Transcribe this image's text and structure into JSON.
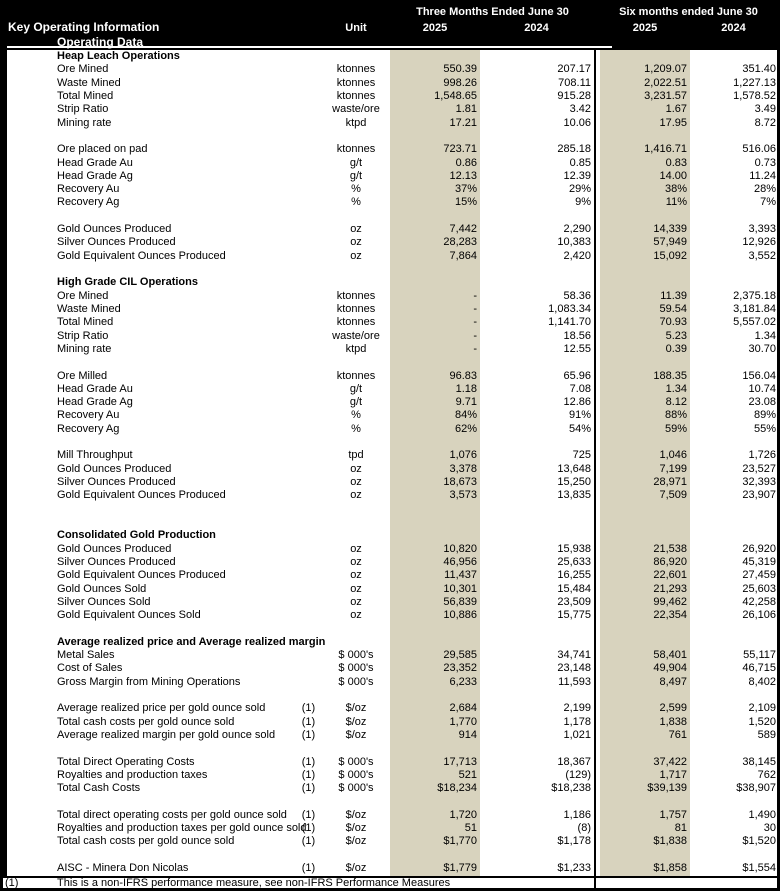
{
  "header": {
    "title": "Key Operating Information",
    "subtitle": "Operating Data",
    "unit_label": "Unit",
    "period1": "Three Months Ended June 30",
    "period2": "Six months ended June 30",
    "years": [
      "2025",
      "2024",
      "2025",
      "2024"
    ]
  },
  "colors": {
    "highlight": "#d8d3be",
    "header_bg": "#000000",
    "header_fg": "#ffffff"
  },
  "rows": [
    {
      "type": "section",
      "label": "Heap Leach Operations"
    },
    {
      "type": "data",
      "label": "Ore Mined",
      "note": "",
      "unit": "ktonnes",
      "values": [
        "550.39",
        "207.17",
        "1,209.07",
        "351.40"
      ]
    },
    {
      "type": "data",
      "label": "Waste Mined",
      "note": "",
      "unit": "ktonnes",
      "values": [
        "998.26",
        "708.11",
        "2,022.51",
        "1,227.13"
      ]
    },
    {
      "type": "data",
      "label": "Total Mined",
      "note": "",
      "unit": "ktonnes",
      "values": [
        "1,548.65",
        "915.28",
        "3,231.57",
        "1,578.52"
      ]
    },
    {
      "type": "data",
      "label": "Strip Ratio",
      "note": "",
      "unit": "waste/ore",
      "values": [
        "1.81",
        "3.42",
        "1.67",
        "3.49"
      ]
    },
    {
      "type": "data",
      "label": "Mining rate",
      "note": "",
      "unit": "ktpd",
      "values": [
        "17.21",
        "10.06",
        "17.95",
        "8.72"
      ]
    },
    {
      "type": "blank"
    },
    {
      "type": "data",
      "label": "Ore placed on pad",
      "note": "",
      "unit": "ktonnes",
      "values": [
        "723.71",
        "285.18",
        "1,416.71",
        "516.06"
      ]
    },
    {
      "type": "data",
      "label": "Head Grade Au",
      "note": "",
      "unit": "g/t",
      "values": [
        "0.86",
        "0.85",
        "0.83",
        "0.73"
      ]
    },
    {
      "type": "data",
      "label": "Head Grade Ag",
      "note": "",
      "unit": "g/t",
      "values": [
        "12.13",
        "12.39",
        "14.00",
        "11.24"
      ]
    },
    {
      "type": "data",
      "label": "Recovery Au",
      "note": "",
      "unit": "%",
      "values": [
        "37%",
        "29%",
        "38%",
        "28%"
      ]
    },
    {
      "type": "data",
      "label": "Recovery Ag",
      "note": "",
      "unit": "%",
      "values": [
        "15%",
        "9%",
        "11%",
        "7%"
      ]
    },
    {
      "type": "blank"
    },
    {
      "type": "data",
      "label": "Gold Ounces Produced",
      "note": "",
      "unit": "oz",
      "values": [
        "7,442",
        "2,290",
        "14,339",
        "3,393"
      ]
    },
    {
      "type": "data",
      "label": "Silver Ounces Produced",
      "note": "",
      "unit": "oz",
      "values": [
        "28,283",
        "10,383",
        "57,949",
        "12,926"
      ]
    },
    {
      "type": "data",
      "label": "Gold Equivalent Ounces Produced",
      "note": "",
      "unit": "oz",
      "values": [
        "7,864",
        "2,420",
        "15,092",
        "3,552"
      ]
    },
    {
      "type": "blank"
    },
    {
      "type": "section",
      "label": "High Grade CIL Operations"
    },
    {
      "type": "data",
      "label": "Ore Mined",
      "note": "",
      "unit": "ktonnes",
      "values": [
        "-",
        "58.36",
        "11.39",
        "2,375.18"
      ]
    },
    {
      "type": "data",
      "label": "Waste Mined",
      "note": "",
      "unit": "ktonnes",
      "values": [
        "-",
        "1,083.34",
        "59.54",
        "3,181.84"
      ]
    },
    {
      "type": "data",
      "label": "Total Mined",
      "note": "",
      "unit": "ktonnes",
      "values": [
        "-",
        "1,141.70",
        "70.93",
        "5,557.02"
      ]
    },
    {
      "type": "data",
      "label": "Strip Ratio",
      "note": "",
      "unit": "waste/ore",
      "values": [
        "-",
        "18.56",
        "5.23",
        "1.34"
      ]
    },
    {
      "type": "data",
      "label": "Mining rate",
      "note": "",
      "unit": "ktpd",
      "values": [
        "-",
        "12.55",
        "0.39",
        "30.70"
      ]
    },
    {
      "type": "blank"
    },
    {
      "type": "data",
      "label": "Ore Milled",
      "note": "",
      "unit": "ktonnes",
      "values": [
        "96.83",
        "65.96",
        "188.35",
        "156.04"
      ]
    },
    {
      "type": "data",
      "label": "Head Grade Au",
      "note": "",
      "unit": "g/t",
      "values": [
        "1.18",
        "7.08",
        "1.34",
        "10.74"
      ]
    },
    {
      "type": "data",
      "label": "Head Grade Ag",
      "note": "",
      "unit": "g/t",
      "values": [
        "9.71",
        "12.86",
        "8.12",
        "23.08"
      ]
    },
    {
      "type": "data",
      "label": "Recovery Au",
      "note": "",
      "unit": "%",
      "values": [
        "84%",
        "91%",
        "88%",
        "89%"
      ]
    },
    {
      "type": "data",
      "label": "Recovery Ag",
      "note": "",
      "unit": "%",
      "values": [
        "62%",
        "54%",
        "59%",
        "55%"
      ]
    },
    {
      "type": "blank"
    },
    {
      "type": "data",
      "label": "Mill Throughput",
      "note": "",
      "unit": "tpd",
      "values": [
        "1,076",
        "725",
        "1,046",
        "1,726"
      ]
    },
    {
      "type": "data",
      "label": "Gold Ounces Produced",
      "note": "",
      "unit": "oz",
      "values": [
        "3,378",
        "13,648",
        "7,199",
        "23,527"
      ]
    },
    {
      "type": "data",
      "label": "Silver Ounces Produced",
      "note": "",
      "unit": "oz",
      "values": [
        "18,673",
        "15,250",
        "28,971",
        "32,393"
      ]
    },
    {
      "type": "data",
      "label": "Gold Equivalent Ounces Produced",
      "note": "",
      "unit": "oz",
      "values": [
        "3,573",
        "13,835",
        "7,509",
        "23,907"
      ]
    },
    {
      "type": "blank"
    },
    {
      "type": "blank"
    },
    {
      "type": "section",
      "label": "Consolidated Gold Production"
    },
    {
      "type": "data",
      "label": "Gold Ounces Produced",
      "note": "",
      "unit": "oz",
      "values": [
        "10,820",
        "15,938",
        "21,538",
        "26,920"
      ]
    },
    {
      "type": "data",
      "label": "Silver Ounces Produced",
      "note": "",
      "unit": "oz",
      "values": [
        "46,956",
        "25,633",
        "86,920",
        "45,319"
      ]
    },
    {
      "type": "data",
      "label": "Gold Equivalent Ounces Produced",
      "note": "",
      "unit": "oz",
      "values": [
        "11,437",
        "16,255",
        "22,601",
        "27,459"
      ]
    },
    {
      "type": "data",
      "label": "Gold Ounces Sold",
      "note": "",
      "unit": "oz",
      "values": [
        "10,301",
        "15,484",
        "21,293",
        "25,603"
      ]
    },
    {
      "type": "data",
      "label": "Silver Ounces Sold",
      "note": "",
      "unit": "oz",
      "values": [
        "56,839",
        "23,509",
        "99,462",
        "42,258"
      ]
    },
    {
      "type": "data",
      "label": "Gold Equivalent Ounces Sold",
      "note": "",
      "unit": "oz",
      "values": [
        "10,886",
        "15,775",
        "22,354",
        "26,106"
      ]
    },
    {
      "type": "blank"
    },
    {
      "type": "section",
      "label": "Average realized price and Average realized margin"
    },
    {
      "type": "data",
      "label": "Metal Sales",
      "note": "",
      "unit": "$ 000's",
      "values": [
        "29,585",
        "34,741",
        "58,401",
        "55,117"
      ]
    },
    {
      "type": "data",
      "label": "Cost of Sales",
      "note": "",
      "unit": "$ 000's",
      "values": [
        "23,352",
        "23,148",
        "49,904",
        "46,715"
      ]
    },
    {
      "type": "data",
      "label": "Gross Margin from Mining Operations",
      "note": "",
      "unit": "$ 000's",
      "values": [
        "6,233",
        "11,593",
        "8,497",
        "8,402"
      ]
    },
    {
      "type": "blank"
    },
    {
      "type": "data",
      "label": "Average realized price per gold ounce sold",
      "note": "(1)",
      "unit": "$/oz",
      "values": [
        "2,684",
        "2,199",
        "2,599",
        "2,109"
      ]
    },
    {
      "type": "data",
      "label": "Total cash costs per gold ounce sold",
      "note": "(1)",
      "unit": "$/oz",
      "values": [
        "1,770",
        "1,178",
        "1,838",
        "1,520"
      ]
    },
    {
      "type": "data",
      "label": "Average realized margin per gold ounce sold",
      "note": "(1)",
      "unit": "$/oz",
      "values": [
        "914",
        "1,021",
        "761",
        "589"
      ]
    },
    {
      "type": "blank"
    },
    {
      "type": "data",
      "label": "Total Direct Operating Costs",
      "note": "(1)",
      "unit": "$ 000's",
      "values": [
        "17,713",
        "18,367",
        "37,422",
        "38,145"
      ]
    },
    {
      "type": "data",
      "label": "Royalties and production taxes",
      "note": "(1)",
      "unit": "$ 000's",
      "values": [
        "521",
        "(129)",
        "1,717",
        "762"
      ]
    },
    {
      "type": "data",
      "label": "Total Cash Costs",
      "note": "(1)",
      "unit": "$ 000's",
      "values": [
        "$18,234",
        "$18,238",
        "$39,139",
        "$38,907"
      ]
    },
    {
      "type": "blank"
    },
    {
      "type": "data",
      "label": "Total direct operating costs per gold ounce sold",
      "note": "(1)",
      "unit": "$/oz",
      "values": [
        "1,720",
        "1,186",
        "1,757",
        "1,490"
      ]
    },
    {
      "type": "data",
      "label": "Royalties and production taxes per gold ounce sold",
      "note": "(1)",
      "unit": "$/oz",
      "values": [
        "51",
        "(8)",
        "81",
        "30"
      ]
    },
    {
      "type": "data",
      "label": "Total cash costs per gold ounce sold",
      "note": "(1)",
      "unit": "$/oz",
      "values": [
        "$1,770",
        "$1,178",
        "$1,838",
        "$1,520"
      ]
    },
    {
      "type": "blank"
    },
    {
      "type": "data",
      "label": "AISC - Minera Don Nicolas",
      "note": "(1)",
      "unit": "$/oz",
      "values": [
        "$1,779",
        "$1,233",
        "$1,858",
        "$1,554"
      ]
    }
  ],
  "footnote": {
    "marker": "(1)",
    "text": "This is a non-IFRS performance measure, see non-IFRS Performance Measures"
  }
}
